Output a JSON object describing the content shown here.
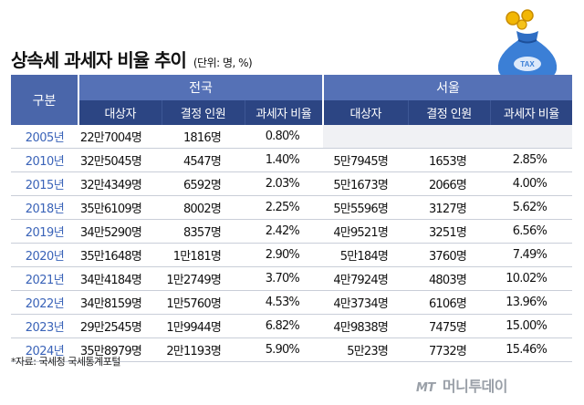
{
  "title": "상속세 과세자 비율 추이",
  "unit": "(단위: 명, %)",
  "header": {
    "gubun": "구분",
    "group_national": "전국",
    "group_seoul": "서울",
    "col_decedents": "대상자",
    "col_approved": "결정 인원",
    "col_ratio": "과세자 비율"
  },
  "rows": [
    {
      "year": "2005년",
      "n_dec": "22만7004명",
      "n_app": "1816명",
      "n_ratio": "0.80%",
      "s_dec": "",
      "s_app": "",
      "s_ratio": ""
    },
    {
      "year": "2010년",
      "n_dec": "32만5045명",
      "n_app": "4547명",
      "n_ratio": "1.40%",
      "s_dec": "5만7945명",
      "s_app": "1653명",
      "s_ratio": "2.85%"
    },
    {
      "year": "2015년",
      "n_dec": "32만4349명",
      "n_app": "6592명",
      "n_ratio": "2.03%",
      "s_dec": "5만1673명",
      "s_app": "2066명",
      "s_ratio": "4.00%"
    },
    {
      "year": "2018년",
      "n_dec": "35만6109명",
      "n_app": "8002명",
      "n_ratio": "2.25%",
      "s_dec": "5만5596명",
      "s_app": "3127명",
      "s_ratio": "5.62%"
    },
    {
      "year": "2019년",
      "n_dec": "34만5290명",
      "n_app": "8357명",
      "n_ratio": "2.42%",
      "s_dec": "4만9521명",
      "s_app": "3251명",
      "s_ratio": "6.56%"
    },
    {
      "year": "2020년",
      "n_dec": "35만1648명",
      "n_app": "1만181명",
      "n_ratio": "2.90%",
      "s_dec": "5만184명",
      "s_app": "3760명",
      "s_ratio": "7.49%"
    },
    {
      "year": "2021년",
      "n_dec": "34만4184명",
      "n_app": "1만2749명",
      "n_ratio": "3.70%",
      "s_dec": "4만7924명",
      "s_app": "4803명",
      "s_ratio": "10.02%"
    },
    {
      "year": "2022년",
      "n_dec": "34만8159명",
      "n_app": "1만5760명",
      "n_ratio": "4.53%",
      "s_dec": "4만3734명",
      "s_app": "6106명",
      "s_ratio": "13.96%"
    },
    {
      "year": "2023년",
      "n_dec": "29만2545명",
      "n_app": "1만9944명",
      "n_ratio": "6.82%",
      "s_dec": "4만9838명",
      "s_app": "7475명",
      "s_ratio": "15.00%"
    },
    {
      "year": "2024년",
      "n_dec": "35만8979명",
      "n_app": "2만1193명",
      "n_ratio": "5.90%",
      "s_dec": "5만23명",
      "s_app": "7732명",
      "s_ratio": "15.46%"
    }
  ],
  "source": "*자료: 국세청 국세통계포털",
  "bag_label": "TAX",
  "logo": {
    "mt": "MT",
    "name": "머니투데이"
  },
  "colors": {
    "header_light": "#5571b6",
    "header_dark": "#2c4583",
    "year_text": "#3a63b8",
    "bag": "#3b7fd6"
  }
}
